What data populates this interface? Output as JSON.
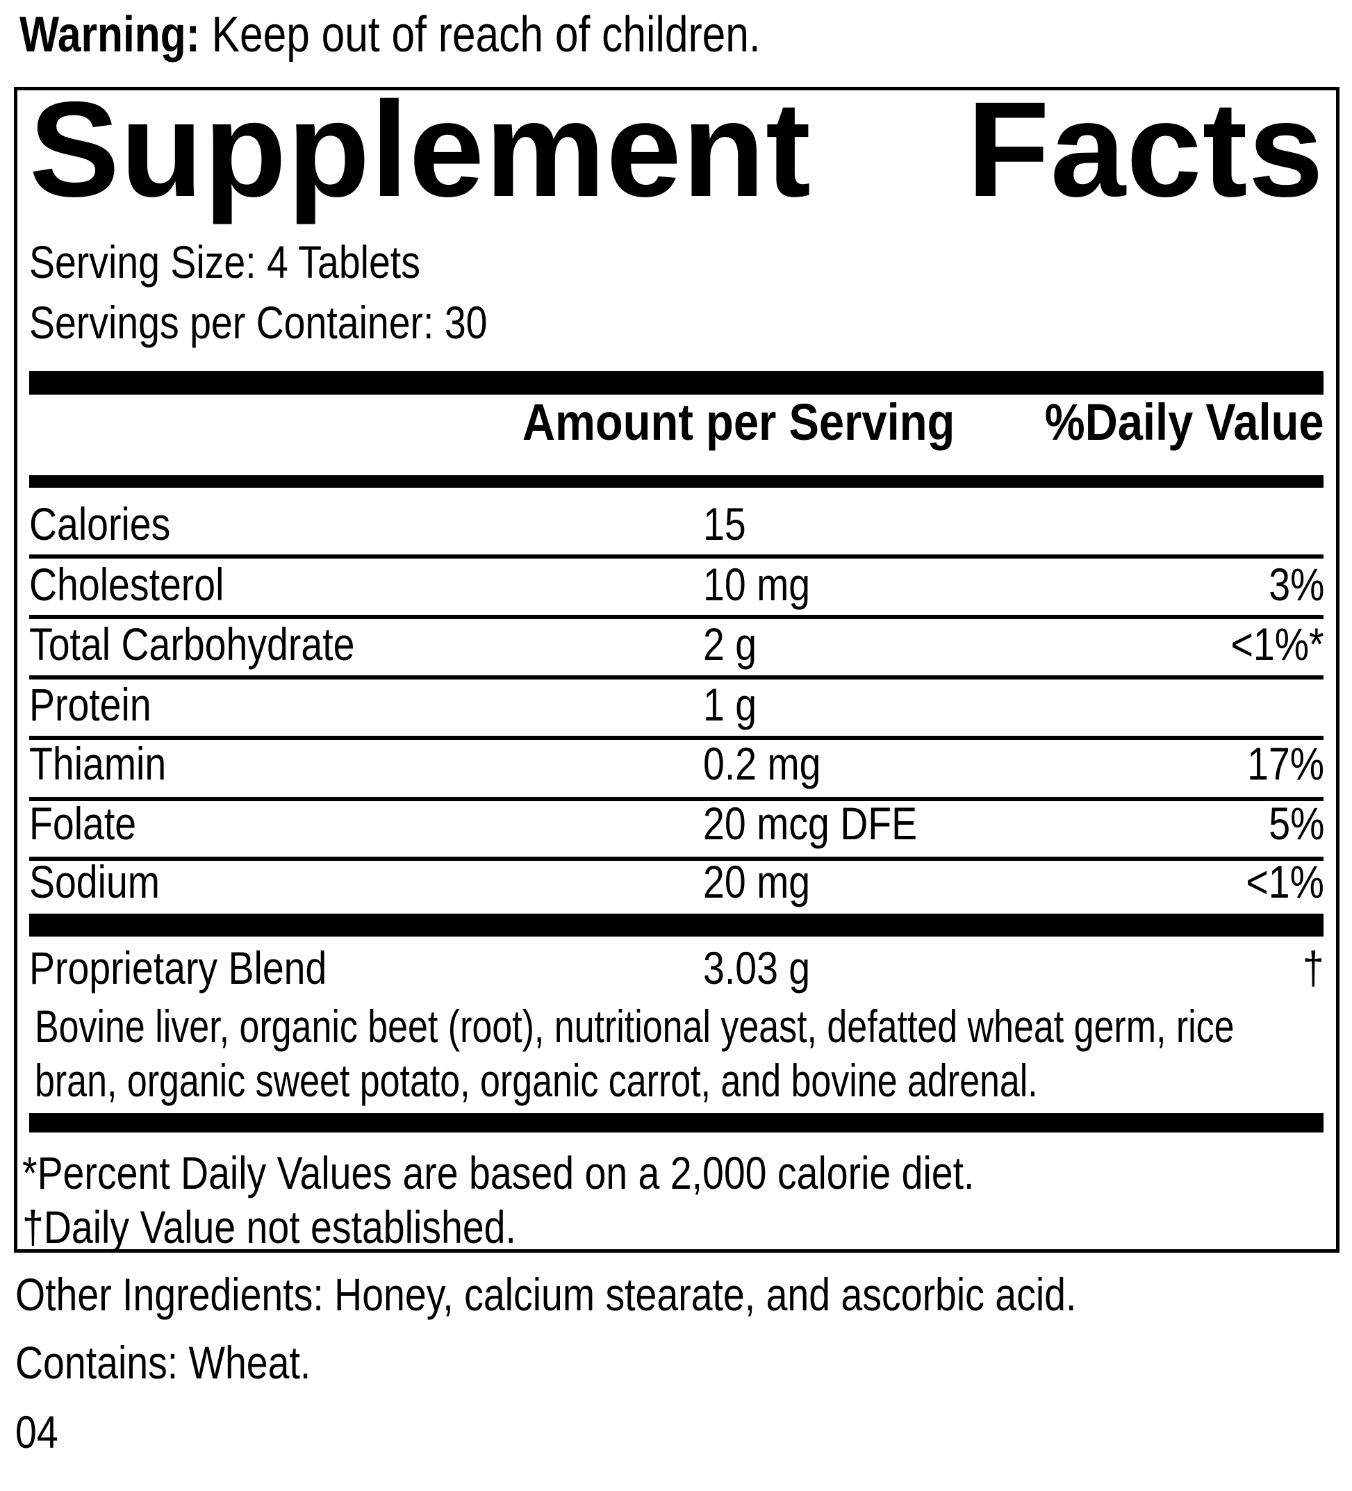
{
  "colors": {
    "ink": "#000000",
    "paper": "#ffffff"
  },
  "warning": {
    "label": "Warning:",
    "text": " Keep out of reach of children."
  },
  "panel": {
    "title_word_1": "Supplement",
    "title_word_2": "Facts",
    "serving_size": "Serving Size: 4 Tablets",
    "servings_per_container": "Servings per Container: 30",
    "column_headers": {
      "amount": "Amount per Serving",
      "daily_value": "%Daily Value"
    },
    "rows": [
      {
        "name": "Calories",
        "amount": "15",
        "dv": ""
      },
      {
        "name": "Cholesterol",
        "amount": "10 mg",
        "dv": "3%"
      },
      {
        "name": "Total Carbohydrate",
        "amount": "2 g",
        "dv": "<1%*"
      },
      {
        "name": "Protein",
        "amount": "1 g",
        "dv": ""
      },
      {
        "name": "Thiamin",
        "amount": "0.2 mg",
        "dv": "17%"
      },
      {
        "name": "Folate",
        "amount": "20 mcg DFE",
        "dv": "5%"
      },
      {
        "name": "Sodium",
        "amount": "20 mg",
        "dv": "<1%"
      }
    ],
    "proprietary_blend": {
      "name": "Proprietary Blend",
      "amount": "3.03 g",
      "dv": "†",
      "description": "Bovine liver, organic beet (root), nutritional yeast, defatted wheat germ, rice bran, organic sweet potato, organic carrot, and bovine adrenal."
    },
    "footnote_percent": "*Percent Daily Values are based on a 2,000 calorie diet.",
    "footnote_dagger": "†Daily Value not established."
  },
  "other_ingredients": "Other Ingredients: Honey, calcium stearate, and ascorbic acid.",
  "contains": "Contains: Wheat.",
  "code": "04"
}
